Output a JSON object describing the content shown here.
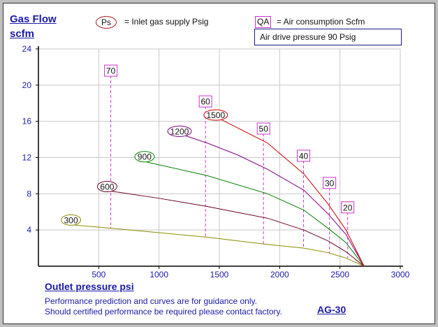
{
  "colors": {
    "axis": "#000000",
    "grid": "#c8c8c8",
    "tick": "#1a1aa8",
    "qa": "#cc33cc",
    "ps_border": "#b02020"
  },
  "header": {
    "ylabel_line1": "Gas Flow",
    "ylabel_line2": "scfm",
    "ps_symbol": "Ps",
    "ps_legend": "= Inlet gas supply  Psig",
    "qa_symbol": "QA",
    "qa_legend": "= Air consumption  Scfm",
    "drive_pressure": "Air drive pressure  90 Psig"
  },
  "footer": {
    "xlabel": "Outlet pressure   psi",
    "note_line1": "Performance prediction and curves are for guidance only.",
    "note_line2": "Should certified performance be required please contact factory.",
    "model": "AG-30"
  },
  "chart_data": {
    "type": "line",
    "title": "AG-30",
    "xlabel": "Outlet pressure   psi",
    "ylabel": "Gas Flow scfm",
    "xlim": [
      0,
      3000
    ],
    "ylim": [
      0,
      24
    ],
    "xticks": [
      500,
      1000,
      1500,
      2000,
      2500,
      3000
    ],
    "yticks": [
      4,
      8,
      12,
      16,
      20,
      24
    ],
    "grid": true,
    "series": [
      {
        "name": "300",
        "color": "#8b8b00",
        "label_at": [
          270,
          5.1
        ],
        "x": [
          250,
          600,
          1000,
          1400,
          1900,
          2200,
          2400,
          2550,
          2700
        ],
        "y": [
          4.6,
          4.2,
          3.7,
          3.2,
          2.4,
          2.0,
          1.5,
          0.9,
          0
        ]
      },
      {
        "name": "600",
        "color": "#6b0026",
        "label_at": [
          570,
          8.8
        ],
        "x": [
          600,
          1000,
          1400,
          1550,
          1900,
          2200,
          2400,
          2550,
          2700
        ],
        "y": [
          8.3,
          7.5,
          6.6,
          6.2,
          5.3,
          4.0,
          2.8,
          1.6,
          0
        ]
      },
      {
        "name": "900",
        "color": "#008000",
        "label_at": [
          880,
          12.1
        ],
        "x": [
          900,
          1400,
          1900,
          2200,
          2400,
          2550,
          2700
        ],
        "y": [
          11.5,
          10.0,
          8.0,
          6.2,
          4.2,
          2.6,
          0
        ]
      },
      {
        "name": "1200",
        "color": "#800080",
        "label_at": [
          1170,
          14.9
        ],
        "x": [
          1200,
          1400,
          1650,
          1900,
          2200,
          2400,
          2550,
          2700
        ],
        "y": [
          14.5,
          13.6,
          12.3,
          10.7,
          8.4,
          5.8,
          3.5,
          0
        ]
      },
      {
        "name": "1500",
        "color": "#cc0000",
        "label_at": [
          1470,
          16.7
        ],
        "x": [
          1500,
          1900,
          2200,
          2400,
          2550,
          2700
        ],
        "y": [
          16.3,
          13.6,
          10.2,
          6.9,
          4.0,
          0
        ]
      }
    ],
    "air_consumption": [
      {
        "label": "70",
        "x": 600,
        "y_top": 21.6,
        "y_bottom": 4.2
      },
      {
        "label": "60",
        "x": 1385,
        "y_top": 18.2,
        "y_bottom": 3.2
      },
      {
        "label": "50",
        "x": 1866,
        "y_top": 15.2,
        "y_bottom": 2.4
      },
      {
        "label": "40",
        "x": 2198,
        "y_top": 12.2,
        "y_bottom": 2.1
      },
      {
        "label": "30",
        "x": 2413,
        "y_top": 9.2,
        "y_bottom": 1.4
      },
      {
        "label": "20",
        "x": 2564,
        "y_top": 6.5,
        "y_bottom": 0.9
      }
    ]
  }
}
